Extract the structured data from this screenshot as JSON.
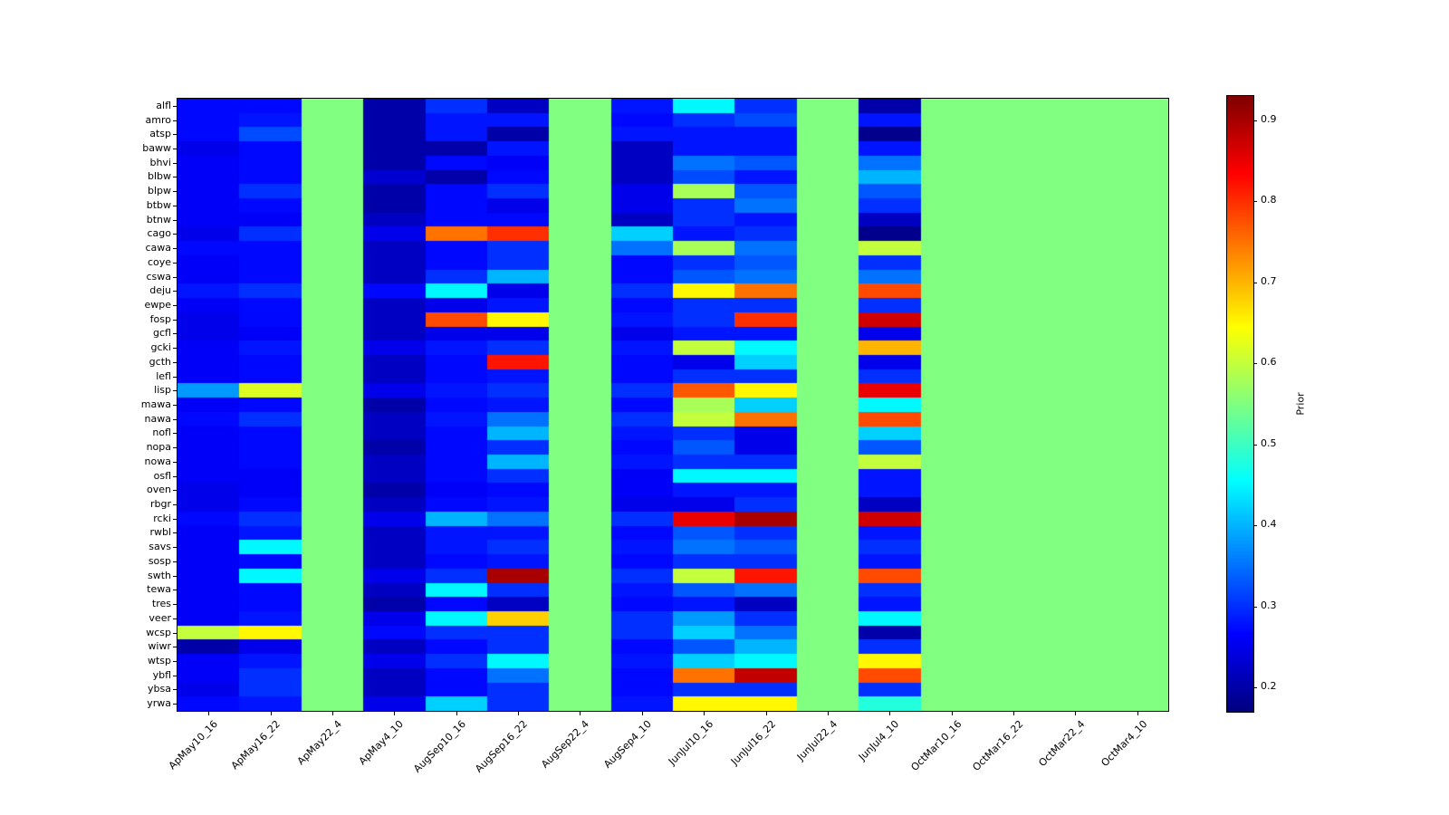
{
  "figure": {
    "background": "#ffffff"
  },
  "colorbar": {
    "label": "Prior",
    "ticks": [
      0.2,
      0.3,
      0.4,
      0.5,
      0.6,
      0.7,
      0.8,
      0.9
    ]
  },
  "chart_data": {
    "type": "heatmap",
    "title": "",
    "colormap": "jet",
    "vmin": 0.17,
    "vmax": 0.93,
    "colorbar_label": "Prior",
    "uniform_fill_value": 0.55,
    "uniform_columns": [
      "ApMay22_4",
      "AugSep22_4",
      "JunJul22_4",
      "OctMar10_16",
      "OctMar16_22",
      "OctMar22_4",
      "OctMar4_10"
    ],
    "x_categories": [
      "ApMay10_16",
      "ApMay16_22",
      "ApMay22_4",
      "ApMay4_10",
      "AugSep10_16",
      "AugSep16_22",
      "AugSep22_4",
      "AugSep4_10",
      "JunJul10_16",
      "JunJul16_22",
      "JunJul22_4",
      "JunJul4_10",
      "OctMar10_16",
      "OctMar16_22",
      "OctMar22_4",
      "OctMar4_10"
    ],
    "y_categories": [
      "alfl",
      "amro",
      "atsp",
      "baww",
      "bhvi",
      "blbw",
      "blpw",
      "btbw",
      "btnw",
      "cago",
      "cawa",
      "coye",
      "cswa",
      "deju",
      "ewpe",
      "fosp",
      "gcfl",
      "gcki",
      "gcth",
      "lefl",
      "lisp",
      "mawa",
      "nawa",
      "nofl",
      "nopa",
      "nowa",
      "osfl",
      "oven",
      "rbgr",
      "rcki",
      "rwbl",
      "savs",
      "sosp",
      "swth",
      "tewa",
      "tres",
      "veer",
      "wcsp",
      "wiwr",
      "wtsp",
      "ybfl",
      "ybsa",
      "yrwa"
    ],
    "values": [
      [
        0.27,
        0.27,
        0.55,
        0.2,
        0.3,
        0.22,
        0.55,
        0.28,
        0.45,
        0.3,
        0.55,
        0.2,
        0.55,
        0.55,
        0.55,
        0.55
      ],
      [
        0.27,
        0.28,
        0.55,
        0.2,
        0.28,
        0.28,
        0.55,
        0.27,
        0.3,
        0.32,
        0.55,
        0.28,
        0.55,
        0.55,
        0.55,
        0.55
      ],
      [
        0.27,
        0.32,
        0.55,
        0.2,
        0.28,
        0.2,
        0.55,
        0.28,
        0.28,
        0.28,
        0.55,
        0.18,
        0.55,
        0.55,
        0.55,
        0.55
      ],
      [
        0.25,
        0.27,
        0.55,
        0.2,
        0.2,
        0.28,
        0.55,
        0.22,
        0.28,
        0.28,
        0.55,
        0.28,
        0.55,
        0.55,
        0.55,
        0.55
      ],
      [
        0.26,
        0.27,
        0.55,
        0.2,
        0.27,
        0.26,
        0.55,
        0.22,
        0.35,
        0.33,
        0.55,
        0.35,
        0.55,
        0.55,
        0.55,
        0.55
      ],
      [
        0.26,
        0.27,
        0.55,
        0.23,
        0.2,
        0.27,
        0.55,
        0.22,
        0.32,
        0.28,
        0.55,
        0.4,
        0.55,
        0.55,
        0.55,
        0.55
      ],
      [
        0.26,
        0.3,
        0.55,
        0.2,
        0.27,
        0.3,
        0.55,
        0.25,
        0.58,
        0.33,
        0.55,
        0.33,
        0.55,
        0.55,
        0.55,
        0.55
      ],
      [
        0.26,
        0.27,
        0.55,
        0.2,
        0.27,
        0.25,
        0.55,
        0.25,
        0.3,
        0.35,
        0.55,
        0.3,
        0.55,
        0.55,
        0.55,
        0.55
      ],
      [
        0.26,
        0.26,
        0.55,
        0.22,
        0.27,
        0.27,
        0.55,
        0.22,
        0.3,
        0.28,
        0.55,
        0.22,
        0.55,
        0.55,
        0.55,
        0.55
      ],
      [
        0.25,
        0.3,
        0.55,
        0.25,
        0.75,
        0.8,
        0.55,
        0.42,
        0.28,
        0.3,
        0.55,
        0.18,
        0.55,
        0.55,
        0.55,
        0.55
      ],
      [
        0.27,
        0.27,
        0.55,
        0.22,
        0.27,
        0.3,
        0.55,
        0.35,
        0.58,
        0.35,
        0.55,
        0.6,
        0.55,
        0.55,
        0.55,
        0.55
      ],
      [
        0.26,
        0.27,
        0.55,
        0.22,
        0.27,
        0.3,
        0.55,
        0.27,
        0.3,
        0.33,
        0.55,
        0.3,
        0.55,
        0.55,
        0.55,
        0.55
      ],
      [
        0.26,
        0.27,
        0.55,
        0.22,
        0.3,
        0.4,
        0.55,
        0.27,
        0.33,
        0.35,
        0.55,
        0.35,
        0.55,
        0.55,
        0.55,
        0.55
      ],
      [
        0.28,
        0.3,
        0.55,
        0.27,
        0.45,
        0.25,
        0.55,
        0.3,
        0.65,
        0.75,
        0.55,
        0.78,
        0.55,
        0.55,
        0.55,
        0.55
      ],
      [
        0.26,
        0.27,
        0.55,
        0.22,
        0.25,
        0.28,
        0.55,
        0.27,
        0.3,
        0.3,
        0.55,
        0.3,
        0.55,
        0.55,
        0.55,
        0.55
      ],
      [
        0.25,
        0.27,
        0.55,
        0.22,
        0.78,
        0.65,
        0.55,
        0.28,
        0.3,
        0.8,
        0.55,
        0.87,
        0.55,
        0.55,
        0.55,
        0.55
      ],
      [
        0.25,
        0.26,
        0.55,
        0.22,
        0.25,
        0.25,
        0.55,
        0.25,
        0.28,
        0.28,
        0.55,
        0.25,
        0.55,
        0.55,
        0.55,
        0.55
      ],
      [
        0.26,
        0.28,
        0.55,
        0.25,
        0.28,
        0.3,
        0.55,
        0.28,
        0.6,
        0.45,
        0.55,
        0.7,
        0.55,
        0.55,
        0.55,
        0.55
      ],
      [
        0.26,
        0.27,
        0.55,
        0.22,
        0.27,
        0.82,
        0.55,
        0.27,
        0.25,
        0.42,
        0.55,
        0.25,
        0.55,
        0.55,
        0.55,
        0.55
      ],
      [
        0.26,
        0.27,
        0.55,
        0.22,
        0.27,
        0.28,
        0.55,
        0.27,
        0.3,
        0.3,
        0.55,
        0.3,
        0.55,
        0.55,
        0.55,
        0.55
      ],
      [
        0.38,
        0.62,
        0.55,
        0.25,
        0.28,
        0.3,
        0.55,
        0.3,
        0.77,
        0.65,
        0.55,
        0.85,
        0.55,
        0.55,
        0.55,
        0.55
      ],
      [
        0.26,
        0.27,
        0.55,
        0.2,
        0.27,
        0.28,
        0.55,
        0.27,
        0.58,
        0.42,
        0.55,
        0.45,
        0.55,
        0.55,
        0.55,
        0.55
      ],
      [
        0.27,
        0.3,
        0.55,
        0.22,
        0.28,
        0.35,
        0.55,
        0.3,
        0.6,
        0.75,
        0.55,
        0.78,
        0.55,
        0.55,
        0.55,
        0.55
      ],
      [
        0.26,
        0.27,
        0.55,
        0.22,
        0.27,
        0.4,
        0.55,
        0.28,
        0.3,
        0.25,
        0.55,
        0.42,
        0.55,
        0.55,
        0.55,
        0.55
      ],
      [
        0.26,
        0.27,
        0.55,
        0.2,
        0.27,
        0.3,
        0.55,
        0.27,
        0.33,
        0.25,
        0.55,
        0.33,
        0.55,
        0.55,
        0.55,
        0.55
      ],
      [
        0.26,
        0.27,
        0.55,
        0.22,
        0.27,
        0.4,
        0.55,
        0.28,
        0.3,
        0.3,
        0.55,
        0.6,
        0.55,
        0.55,
        0.55,
        0.55
      ],
      [
        0.26,
        0.26,
        0.55,
        0.22,
        0.27,
        0.3,
        0.55,
        0.26,
        0.45,
        0.45,
        0.55,
        0.28,
        0.55,
        0.55,
        0.55,
        0.55
      ],
      [
        0.25,
        0.26,
        0.55,
        0.2,
        0.26,
        0.27,
        0.55,
        0.26,
        0.28,
        0.28,
        0.55,
        0.28,
        0.55,
        0.55,
        0.55,
        0.55
      ],
      [
        0.25,
        0.27,
        0.55,
        0.22,
        0.27,
        0.28,
        0.55,
        0.25,
        0.25,
        0.3,
        0.55,
        0.22,
        0.55,
        0.55,
        0.55,
        0.55
      ],
      [
        0.27,
        0.3,
        0.55,
        0.25,
        0.4,
        0.35,
        0.55,
        0.3,
        0.85,
        0.9,
        0.55,
        0.87,
        0.55,
        0.55,
        0.55,
        0.55
      ],
      [
        0.26,
        0.28,
        0.55,
        0.22,
        0.28,
        0.28,
        0.55,
        0.27,
        0.33,
        0.3,
        0.55,
        0.28,
        0.55,
        0.55,
        0.55,
        0.55
      ],
      [
        0.26,
        0.45,
        0.55,
        0.22,
        0.28,
        0.3,
        0.55,
        0.28,
        0.35,
        0.33,
        0.55,
        0.3,
        0.55,
        0.55,
        0.55,
        0.55
      ],
      [
        0.26,
        0.27,
        0.55,
        0.22,
        0.27,
        0.28,
        0.55,
        0.27,
        0.3,
        0.3,
        0.55,
        0.28,
        0.55,
        0.55,
        0.55,
        0.55
      ],
      [
        0.26,
        0.45,
        0.55,
        0.25,
        0.3,
        0.9,
        0.55,
        0.3,
        0.6,
        0.82,
        0.55,
        0.78,
        0.55,
        0.55,
        0.55,
        0.55
      ],
      [
        0.26,
        0.27,
        0.55,
        0.22,
        0.45,
        0.3,
        0.55,
        0.28,
        0.33,
        0.35,
        0.55,
        0.3,
        0.55,
        0.55,
        0.55,
        0.55
      ],
      [
        0.26,
        0.27,
        0.55,
        0.2,
        0.27,
        0.22,
        0.55,
        0.27,
        0.28,
        0.22,
        0.55,
        0.28,
        0.55,
        0.55,
        0.55,
        0.55
      ],
      [
        0.26,
        0.28,
        0.55,
        0.25,
        0.45,
        0.68,
        0.55,
        0.3,
        0.38,
        0.3,
        0.55,
        0.45,
        0.55,
        0.55,
        0.55,
        0.55
      ],
      [
        0.6,
        0.65,
        0.55,
        0.27,
        0.3,
        0.3,
        0.55,
        0.3,
        0.42,
        0.35,
        0.55,
        0.2,
        0.55,
        0.55,
        0.55,
        0.55
      ],
      [
        0.2,
        0.25,
        0.55,
        0.22,
        0.27,
        0.3,
        0.55,
        0.27,
        0.33,
        0.4,
        0.55,
        0.3,
        0.55,
        0.55,
        0.55,
        0.55
      ],
      [
        0.26,
        0.28,
        0.55,
        0.25,
        0.3,
        0.45,
        0.55,
        0.28,
        0.42,
        0.45,
        0.55,
        0.65,
        0.55,
        0.55,
        0.55,
        0.55
      ],
      [
        0.26,
        0.3,
        0.55,
        0.22,
        0.27,
        0.35,
        0.55,
        0.27,
        0.75,
        0.88,
        0.55,
        0.78,
        0.55,
        0.55,
        0.55,
        0.55
      ],
      [
        0.25,
        0.3,
        0.55,
        0.22,
        0.27,
        0.3,
        0.55,
        0.27,
        0.3,
        0.3,
        0.55,
        0.3,
        0.55,
        0.55,
        0.55,
        0.55
      ],
      [
        0.27,
        0.28,
        0.55,
        0.25,
        0.42,
        0.3,
        0.55,
        0.28,
        0.65,
        0.65,
        0.55,
        0.48,
        0.55,
        0.55,
        0.55,
        0.55
      ]
    ]
  }
}
